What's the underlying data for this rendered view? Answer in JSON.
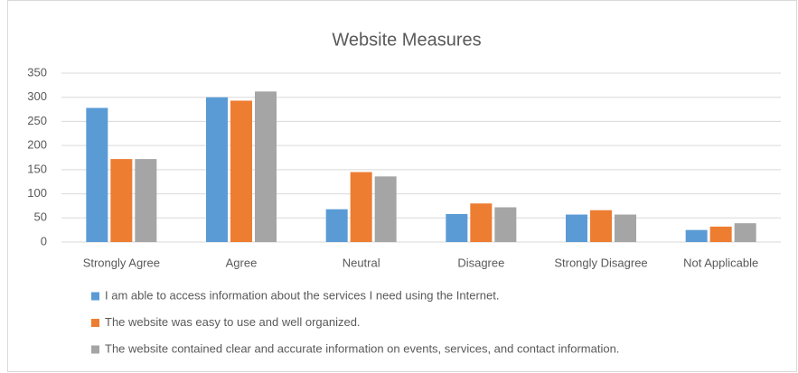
{
  "chart_data": {
    "type": "bar",
    "title": "Website Measures",
    "categories": [
      "Strongly Agree",
      "Agree",
      "Neutral",
      "Disagree",
      "Strongly Disagree",
      "Not Applicable"
    ],
    "series": [
      {
        "name": "I am able to access information about the services I need using the Internet.",
        "color": "#5b9bd5",
        "values": [
          278,
          300,
          68,
          58,
          57,
          25
        ]
      },
      {
        "name": "The website was easy to use and well organized.",
        "color": "#ed7d31",
        "values": [
          172,
          293,
          145,
          80,
          66,
          32
        ]
      },
      {
        "name": "The website contained clear and accurate information on events, services, and contact information.",
        "color": "#a5a5a5",
        "values": [
          172,
          312,
          136,
          72,
          57,
          39
        ]
      }
    ],
    "ylim": [
      0,
      350
    ],
    "yticks": [
      0,
      50,
      100,
      150,
      200,
      250,
      300,
      350
    ],
    "grid": true,
    "legend": "bottom"
  }
}
